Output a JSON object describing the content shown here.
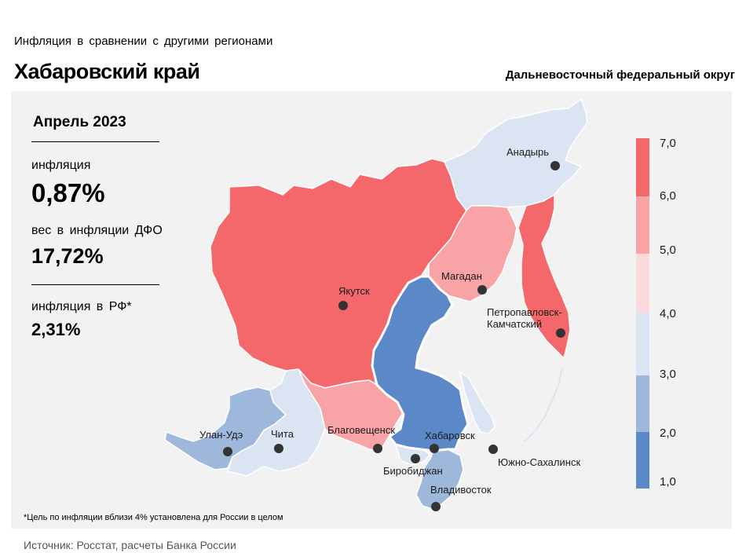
{
  "header": {
    "subtitle": "Инфляция в сравнении с другими регионами",
    "title": "Хабаровский край",
    "district": "Дальневосточный федеральный округ"
  },
  "info": {
    "month": "Апрель 2023",
    "inflation_label": "инфляция",
    "inflation_value": "0,87%",
    "weight_label": "вес в инфляции ДФО",
    "weight_value": "17,72%",
    "rf_label": "инфляция в РФ*",
    "rf_value": "2,31%"
  },
  "footnote": "*Цель по инфляции вблизи 4% установлена для России в целом",
  "source": "Источник: Росстат, расчеты Банка России",
  "legend": {
    "ticks": [
      "7,0",
      "6,0",
      "5,0",
      "4,0",
      "3,0",
      "2,0",
      "1,0"
    ],
    "colors": [
      "#f4686b",
      "#f8a3a6",
      "#fadadd",
      "#dbe4f3",
      "#9eb8dc",
      "#5b88c6"
    ]
  },
  "map": {
    "highlighted_region": "Хабаровский край",
    "cities": [
      {
        "name": "Анадырь",
        "lines": [
          "Анадырь"
        ],
        "class": "3-4"
      },
      {
        "name": "Якутск",
        "lines": [
          "Якутск"
        ],
        "class": "6-7"
      },
      {
        "name": "Магадан",
        "lines": [
          "Магадан"
        ],
        "class": "5-6"
      },
      {
        "name": "Петропавловск-Камчатский",
        "lines": [
          "Петропавловск-",
          "Камчатский"
        ],
        "class": "6-7"
      },
      {
        "name": "Улан-Удэ",
        "lines": [
          "Улан-Удэ"
        ],
        "class": "2-3"
      },
      {
        "name": "Чита",
        "lines": [
          "Чита"
        ],
        "class": "3-4"
      },
      {
        "name": "Благовещенск",
        "lines": [
          "Благовещенск"
        ],
        "class": "5-6"
      },
      {
        "name": "Хабаровск",
        "lines": [
          "Хабаровск"
        ],
        "class": "1-2"
      },
      {
        "name": "Биробиджан",
        "lines": [
          "Биробиджан"
        ],
        "class": "3-4"
      },
      {
        "name": "Южно-Сахалинск",
        "lines": [
          "Южно-Сахалинск"
        ],
        "class": "3-4"
      },
      {
        "name": "Владивосток",
        "lines": [
          "Владивосток"
        ],
        "class": "2-3"
      }
    ]
  }
}
